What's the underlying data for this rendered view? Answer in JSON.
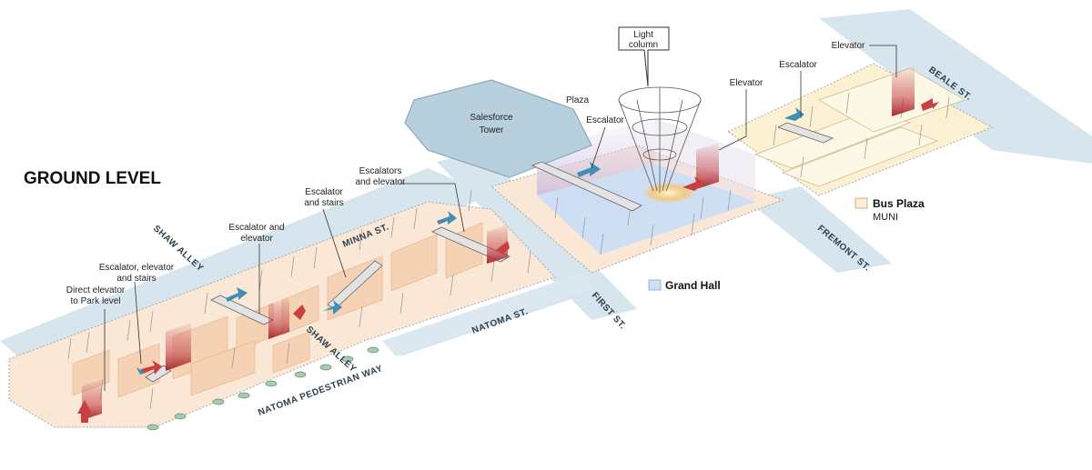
{
  "title": "GROUND LEVEL",
  "legend": {
    "bus_plaza": {
      "label": "Bus Plaza",
      "sub": "MUNI",
      "color": "#fbf1d2"
    },
    "grand_hall": {
      "label": "Grand Hall",
      "color": "#cfdff3"
    }
  },
  "landmarks": {
    "tower": [
      "Salesforce",
      "Tower"
    ],
    "plaza": "Plaza",
    "light_column": [
      "Light",
      "column"
    ]
  },
  "streets": {
    "beale": "BEALE ST.",
    "fremont": "FREMONT ST.",
    "first": "FIRST ST.",
    "natoma": "NATOMA ST.",
    "minna": "MINNA ST.",
    "shaw_alley_top": "SHAW ALLEY",
    "shaw_alley_mid": "SHAW ALLEY",
    "natoma_ped": "NATOMA PEDESTRIAN WAY"
  },
  "callouts": {
    "direct_elevator": [
      "Direct elevator",
      "to Park level"
    ],
    "esc_elev_stairs": [
      "Escalator, elevator",
      "and stairs"
    ],
    "esc_and_elevator": [
      "Escalator and",
      "elevator"
    ],
    "esc_and_stairs": [
      "Escalator",
      "and stairs"
    ],
    "escalators_elevator": [
      "Escalators",
      "and elevator"
    ],
    "escalator_plaza": "Escalator",
    "elevator_mid": "Elevator",
    "escalator_east": "Escalator",
    "elevator_east": "Elevator"
  },
  "colors": {
    "street": "#d7e6ee",
    "ground": "#fae7d5",
    "grand_hall": "#cfdff3",
    "tower": "#b8d0dd",
    "elevator": "#b3252d",
    "arrow_red": "#c8403f",
    "arrow_blue": "#3f8fb6"
  }
}
